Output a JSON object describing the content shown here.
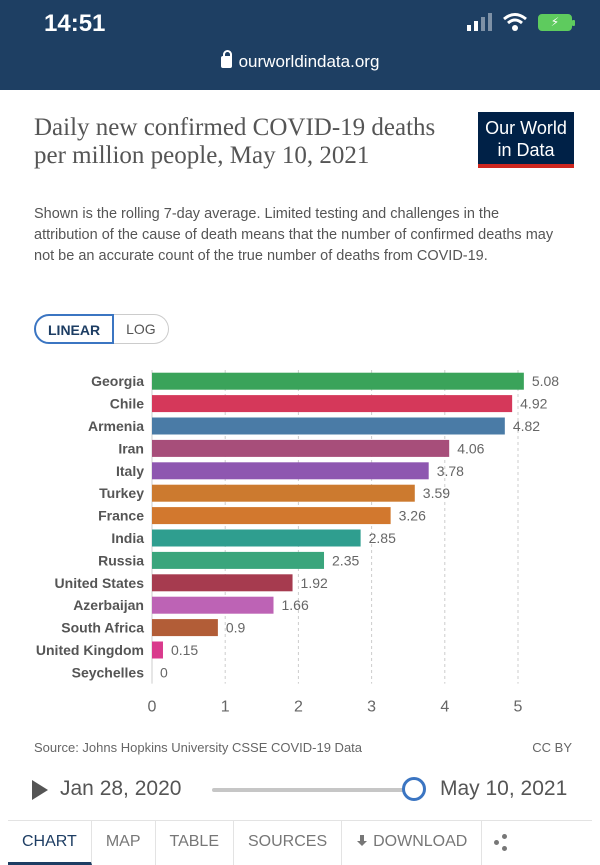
{
  "status_bar": {
    "time": "14:51",
    "url": "ourworldindata.org"
  },
  "header": {
    "title": "Daily new confirmed COVID-19 deaths per million people, May 10, 2021",
    "subtitle": "Shown is the rolling 7-day average. Limited testing and challenges in the attribution of the cause of death means that the number of confirmed deaths may not be an accurate count of the true number of deaths from COVID-19.",
    "logo_line1": "Our World",
    "logo_line2": "in Data"
  },
  "scale_toggle": {
    "linear_label": "LINEAR",
    "log_label": "LOG",
    "selected": "LINEAR"
  },
  "chart_data": {
    "type": "bar",
    "orientation": "horizontal",
    "categories": [
      "Georgia",
      "Chile",
      "Armenia",
      "Iran",
      "Italy",
      "Turkey",
      "France",
      "India",
      "Russia",
      "United States",
      "Azerbaijan",
      "South Africa",
      "United Kingdom",
      "Seychelles"
    ],
    "values": [
      5.08,
      4.92,
      4.82,
      4.06,
      3.78,
      3.59,
      3.26,
      2.85,
      2.35,
      1.92,
      1.66,
      0.9,
      0.15,
      0
    ],
    "value_labels": [
      "5.08",
      "4.92",
      "4.82",
      "4.06",
      "3.78",
      "3.59",
      "3.26",
      "2.85",
      "2.35",
      "1.92",
      "1.66",
      "0.9",
      "0.15",
      "0"
    ],
    "colors": [
      "#3aa35a",
      "#d5385a",
      "#4a7ba6",
      "#a74e7a",
      "#8e57b0",
      "#cc7a2f",
      "#d2782e",
      "#2f9e8f",
      "#3aa57c",
      "#a63b4f",
      "#bd63b5",
      "#b25d37",
      "#d93a8c",
      "#999999"
    ],
    "xlim": [
      0,
      5
    ],
    "xticks": [
      "0",
      "1",
      "2",
      "3",
      "4",
      "5"
    ],
    "grid": true
  },
  "footer": {
    "source": "Source: Johns Hopkins University CSSE COVID-19 Data",
    "license": "CC BY"
  },
  "timeline": {
    "start_date": "Jan 28, 2020",
    "end_date": "May 10, 2021",
    "position": 1.0
  },
  "tabs": {
    "chart": "CHART",
    "map": "MAP",
    "table": "TABLE",
    "sources": "SOURCES",
    "download": "DOWNLOAD"
  }
}
